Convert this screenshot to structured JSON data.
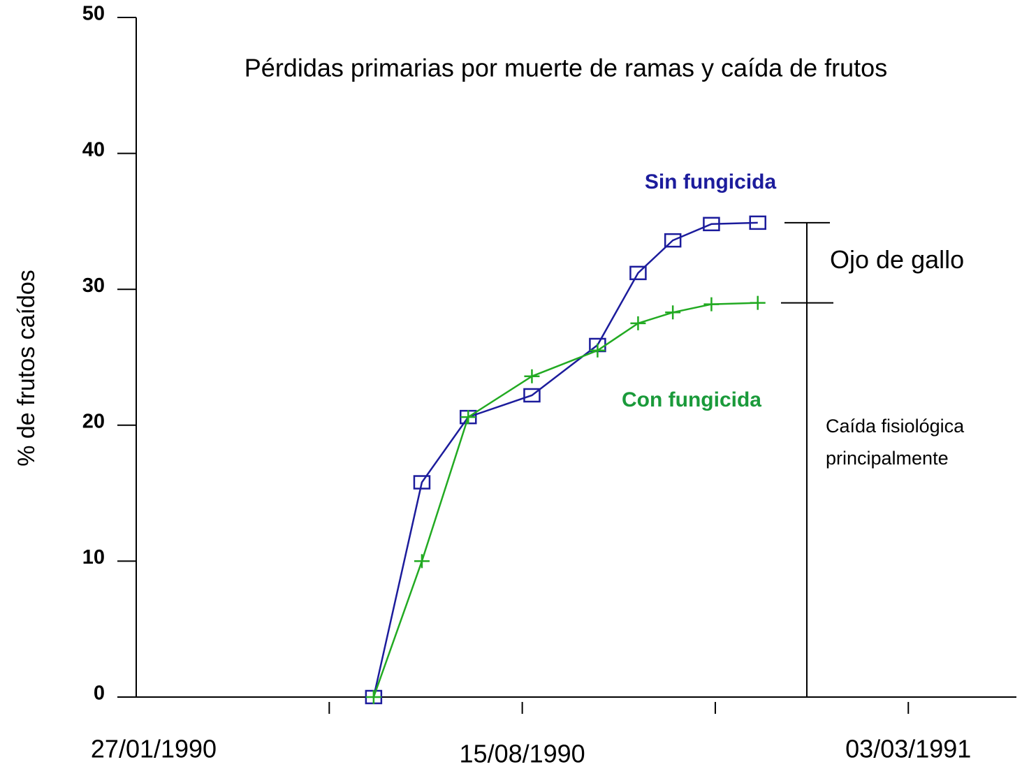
{
  "chart_data": {
    "type": "line",
    "title": "Pérdidas primarias por muerte de ramas y caída de frutos",
    "y_label": "% de frutos caídos",
    "xlim": [
      "27/01/1990",
      "28/04/1991"
    ],
    "xticks": [
      {
        "value": "07/05/1990"
      },
      "15/08/1990",
      {
        "value": "23/11/1990"
      },
      "03/03/1991"
    ],
    "ylim": [
      0,
      50
    ],
    "yticks": [
      0,
      10,
      20,
      30,
      40,
      50
    ],
    "x": [
      "30/05/1990",
      "24/06/1990",
      "18/07/1990",
      "20/08/1990",
      "23/09/1990",
      "14/10/1990",
      "01/11/1990",
      "21/11/1990",
      "15/12/1990"
    ],
    "series": [
      {
        "name": "Sin fungicida",
        "color": "#1c1c9c",
        "label_color": "#1c1c9c",
        "marker": "square",
        "values": [
          0,
          15.8,
          20.6,
          22.2,
          25.9,
          31.2,
          33.6,
          34.8,
          34.9
        ]
      },
      {
        "name": "Con fungicida",
        "color": "#22aa22",
        "label_color": "#1a9a3a",
        "marker": "plus",
        "values": [
          0,
          10.0,
          20.6,
          23.6,
          25.5,
          27.5,
          28.3,
          28.9,
          29.0
        ]
      }
    ],
    "annotations": [
      "Ojo de gallo",
      [
        "Caída fisiológica",
        "principalmente"
      ]
    ]
  }
}
